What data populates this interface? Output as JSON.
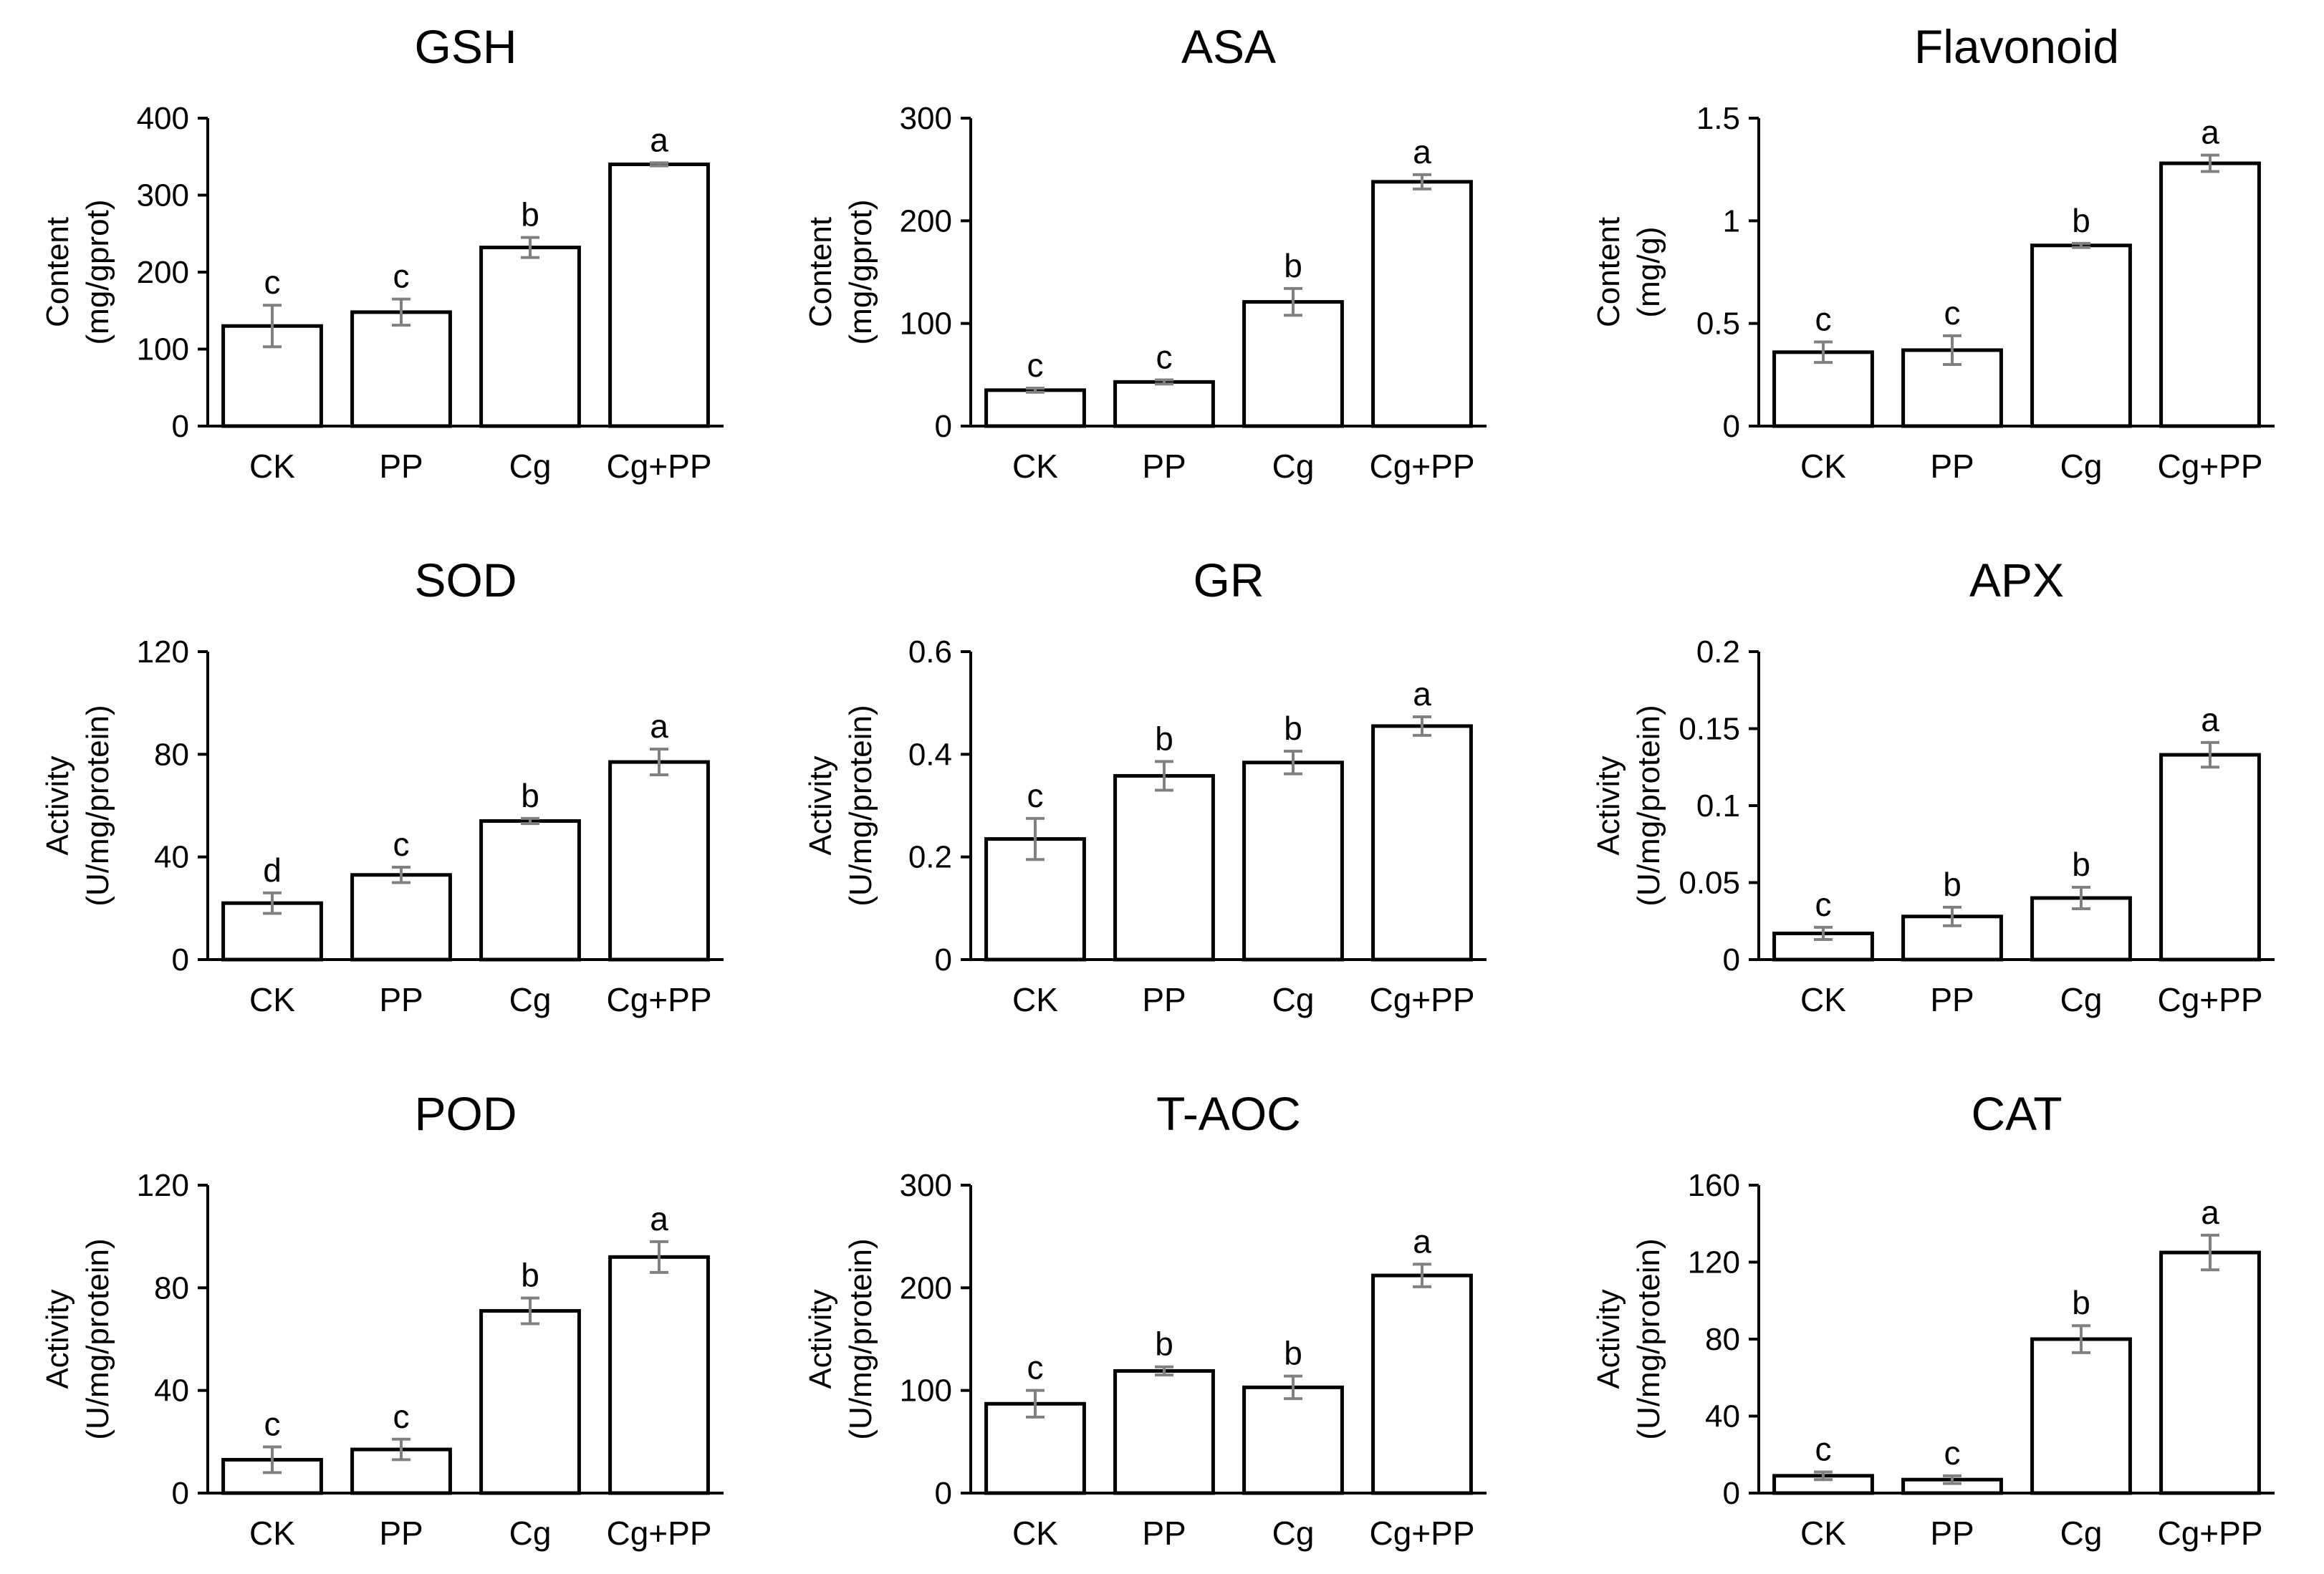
{
  "chart_data": [
    {
      "type": "bar",
      "title": "GSH",
      "ylabel": [
        "Content",
        "(mg/gprot)"
      ],
      "categories": [
        "CK",
        "PP",
        "Cg",
        "Cg+PP"
      ],
      "values": [
        130,
        148,
        232,
        340
      ],
      "errors": [
        27,
        17,
        13,
        2
      ],
      "letters": [
        "c",
        "c",
        "b",
        "a"
      ],
      "ylim": [
        0,
        400
      ],
      "ticks": [
        "0",
        "100",
        "200",
        "300",
        "400"
      ]
    },
    {
      "type": "bar",
      "title": "ASA",
      "ylabel": [
        "Content",
        "(mg/gprot)"
      ],
      "categories": [
        "CK",
        "PP",
        "Cg",
        "Cg+PP"
      ],
      "values": [
        35,
        43,
        121,
        238
      ],
      "errors": [
        2,
        2,
        13,
        7
      ],
      "letters": [
        "c",
        "c",
        "b",
        "a"
      ],
      "ylim": [
        0,
        300
      ],
      "ticks": [
        "0",
        "100",
        "200",
        "300"
      ]
    },
    {
      "type": "bar",
      "title": "Flavonoid",
      "ylabel": [
        "Content",
        "(mg/g)"
      ],
      "categories": [
        "CK",
        "PP",
        "Cg",
        "Cg+PP"
      ],
      "values": [
        0.36,
        0.37,
        0.88,
        1.28
      ],
      "errors": [
        0.05,
        0.07,
        0.01,
        0.04
      ],
      "letters": [
        "c",
        "c",
        "b",
        "a"
      ],
      "ylim": [
        0,
        1.5
      ],
      "ticks": [
        "0",
        "0.5",
        "1",
        "1.5"
      ]
    },
    {
      "type": "bar",
      "title": "SOD",
      "ylabel": [
        "Activity",
        "(U/mg/protein)"
      ],
      "categories": [
        "CK",
        "PP",
        "Cg",
        "Cg+PP"
      ],
      "values": [
        22,
        33,
        54,
        77
      ],
      "errors": [
        4,
        3,
        1,
        5
      ],
      "letters": [
        "d",
        "c",
        "b",
        "a"
      ],
      "ylim": [
        0,
        120
      ],
      "ticks": [
        "0",
        "40",
        "80",
        "120"
      ]
    },
    {
      "type": "bar",
      "title": "GR",
      "ylabel": [
        "Activity",
        "(U/mg/protein)"
      ],
      "categories": [
        "CK",
        "PP",
        "Cg",
        "Cg+PP"
      ],
      "values": [
        0.235,
        0.358,
        0.384,
        0.455
      ],
      "errors": [
        0.04,
        0.028,
        0.022,
        0.018
      ],
      "letters": [
        "c",
        "b",
        "b",
        "a"
      ],
      "ylim": [
        0,
        0.6
      ],
      "ticks": [
        "0",
        "0.2",
        "0.4",
        "0.6"
      ]
    },
    {
      "type": "bar",
      "title": "APX",
      "ylabel": [
        "Activity",
        "(U/mg/protein)"
      ],
      "categories": [
        "CK",
        "PP",
        "Cg",
        "Cg+PP"
      ],
      "values": [
        0.017,
        0.028,
        0.04,
        0.133
      ],
      "errors": [
        0.004,
        0.006,
        0.007,
        0.008
      ],
      "letters": [
        "c",
        "b",
        "b",
        "a"
      ],
      "ylim": [
        0,
        0.2
      ],
      "ticks": [
        "0",
        "0.05",
        "0.1",
        "0.15",
        "0.2"
      ]
    },
    {
      "type": "bar",
      "title": "POD",
      "ylabel": [
        "Activity",
        "(U/mg/protein)"
      ],
      "categories": [
        "CK",
        "PP",
        "Cg",
        "Cg+PP"
      ],
      "values": [
        13,
        17,
        71,
        92
      ],
      "errors": [
        5,
        4,
        5,
        6
      ],
      "letters": [
        "c",
        "c",
        "b",
        "a"
      ],
      "ylim": [
        0,
        120
      ],
      "ticks": [
        "0",
        "40",
        "80",
        "120"
      ]
    },
    {
      "type": "bar",
      "title": "T-AOC",
      "ylabel": [
        "Activity",
        "(U/mg/protein)"
      ],
      "categories": [
        "CK",
        "PP",
        "Cg",
        "Cg+PP"
      ],
      "values": [
        87,
        119,
        103,
        212
      ],
      "errors": [
        13,
        4,
        11,
        11
      ],
      "letters": [
        "c",
        "b",
        "b",
        "a"
      ],
      "ylim": [
        0,
        300
      ],
      "ticks": [
        "0",
        "100",
        "200",
        "300"
      ]
    },
    {
      "type": "bar",
      "title": "CAT",
      "ylabel": [
        "Activity",
        "(U/mg/protein)"
      ],
      "categories": [
        "CK",
        "PP",
        "Cg",
        "Cg+PP"
      ],
      "values": [
        9,
        7,
        80,
        125
      ],
      "errors": [
        2,
        2,
        7,
        9
      ],
      "letters": [
        "c",
        "c",
        "b",
        "a"
      ],
      "ylim": [
        0,
        160
      ],
      "ticks": [
        "0",
        "40",
        "80",
        "120",
        "160"
      ]
    }
  ],
  "colors": {
    "bar_fill": "#ffffff",
    "bar_stroke": "#000000",
    "error_bar": "#808080",
    "axis": "#000000"
  }
}
